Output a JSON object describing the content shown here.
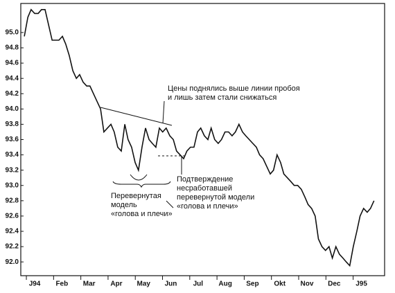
{
  "chart_data": {
    "type": "line",
    "color": "#111111",
    "x": [
      -0.38,
      -0.25,
      -0.13,
      0,
      0.13,
      0.25,
      0.38,
      0.51,
      0.64,
      0.76,
      0.89,
      1.02,
      1.14,
      1.27,
      1.4,
      1.53,
      1.65,
      1.78,
      1.91,
      2.03,
      2.16,
      2.29,
      2.42,
      2.54,
      2.67,
      2.8,
      2.92,
      3.05,
      3.18,
      3.31,
      3.43,
      3.56,
      3.69,
      3.81,
      3.94,
      4.07,
      4.2,
      4.32,
      4.45,
      4.58,
      4.7,
      4.83,
      4.96,
      5.09,
      5.21,
      5.34,
      5.47,
      5.59,
      5.72,
      5.85,
      5.98,
      6.1,
      6.23,
      6.36,
      6.48,
      6.61,
      6.74,
      6.86,
      6.99,
      7.12,
      7.25,
      7.37,
      7.5,
      7.63,
      7.75,
      7.88,
      8.01,
      8.14,
      8.26,
      8.39,
      8.52,
      8.65,
      8.77,
      8.9,
      9.03,
      9.15,
      9.28,
      9.41,
      9.53,
      9.66,
      9.79,
      9.92,
      10.04,
      10.17,
      10.3,
      10.42,
      10.55,
      10.68,
      10.81,
      10.93,
      11.06,
      11.19,
      11.32,
      11.44,
      11.57,
      11.7,
      11.83,
      11.95,
      12.08,
      12.21,
      12.33,
      12.46
    ],
    "values": [
      94.95,
      95.2,
      95.3,
      95.25,
      95.25,
      95.3,
      95.3,
      95.1,
      94.9,
      94.9,
      94.9,
      94.95,
      94.85,
      94.7,
      94.5,
      94.4,
      94.45,
      94.35,
      94.3,
      94.3,
      94.2,
      94.1,
      94.0,
      93.7,
      93.75,
      93.8,
      93.7,
      93.5,
      93.45,
      93.8,
      93.6,
      93.5,
      93.3,
      93.2,
      93.5,
      93.75,
      93.6,
      93.55,
      93.5,
      93.75,
      93.7,
      93.75,
      93.65,
      93.6,
      93.45,
      93.4,
      93.35,
      93.45,
      93.5,
      93.5,
      93.7,
      93.75,
      93.65,
      93.6,
      93.75,
      93.6,
      93.55,
      93.6,
      93.7,
      93.7,
      93.65,
      93.7,
      93.8,
      93.7,
      93.65,
      93.6,
      93.55,
      93.5,
      93.4,
      93.35,
      93.25,
      93.15,
      93.2,
      93.4,
      93.3,
      93.15,
      93.1,
      93.05,
      93.0,
      93.0,
      92.95,
      92.85,
      92.75,
      92.7,
      92.6,
      92.3,
      92.2,
      92.15,
      92.2,
      92.05,
      92.2,
      92.1,
      92.05,
      92.0,
      91.95,
      92.2,
      92.4,
      92.6,
      92.7,
      92.65,
      92.7,
      92.8
    ],
    "xlim": [
      -0.51,
      12.85
    ],
    "xticks": [
      {
        "value": 0,
        "label": "J94"
      },
      {
        "value": 1,
        "label": "Feb"
      },
      {
        "value": 2,
        "label": "Mar"
      },
      {
        "value": 3,
        "label": "Apr"
      },
      {
        "value": 4,
        "label": "May"
      },
      {
        "value": 5,
        "label": "Jun"
      },
      {
        "value": 6,
        "label": "Jul"
      },
      {
        "value": 7,
        "label": "Aug"
      },
      {
        "value": 8,
        "label": "Sep"
      },
      {
        "value": 9,
        "label": "Okt"
      },
      {
        "value": 10,
        "label": "Nov"
      },
      {
        "value": 11,
        "label": "Dec"
      },
      {
        "value": 12,
        "label": "J95"
      }
    ],
    "ylim": [
      91.82,
      95.38
    ],
    "yticks": [
      {
        "value": 92,
        "label": "92.0"
      },
      92.2,
      92.4,
      92.6,
      92.8,
      {
        "value": 93,
        "label": "93.0"
      },
      93.2,
      93.4,
      93.6,
      93.8,
      {
        "value": 94,
        "label": "94.0"
      },
      94.2,
      94.4,
      94.6,
      94.8,
      {
        "value": 95,
        "label": "95.0"
      }
    ],
    "annotations": [
      [
        "Цены поднялись выше линии пробоя",
        "и лишь затем стали снижаться"
      ],
      [
        "Перевернутая",
        "модель",
        "«голова и плечи»"
      ],
      [
        "Подтверждение",
        "несработавшей",
        "перевернутой модели",
        "«голова и плечи»"
      ]
    ]
  }
}
